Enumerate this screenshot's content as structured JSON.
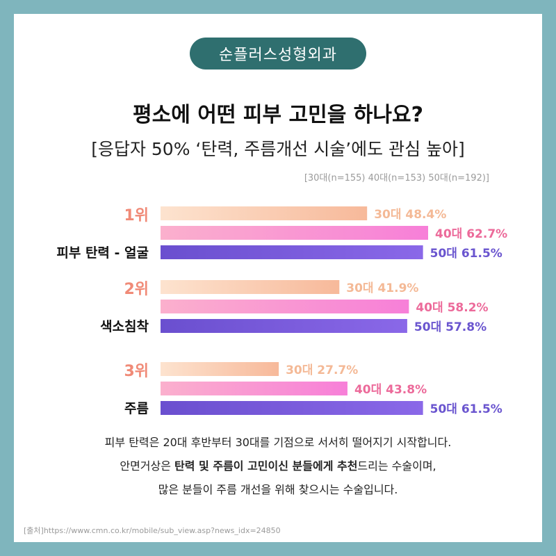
{
  "brand": "순플러스성형외과",
  "title": "평소에 어떤 피부 고민을 하나요?",
  "subtitle": "[응답자 50% ‘탄력, 주름개선 시술’에도 관심 높아]",
  "sample_note": "[30대(n=155)  40대(n=153)  50대(n=192)]",
  "chart_data": {
    "type": "bar",
    "orientation": "horizontal",
    "unit": "%",
    "xlim": [
      0,
      100
    ],
    "grid": false,
    "categories": [
      {
        "rank": "1위",
        "label": "피부 탄력 - 얼굴"
      },
      {
        "rank": "2위",
        "label": "색소침착"
      },
      {
        "rank": "3위",
        "label": "주름"
      }
    ],
    "series": [
      {
        "name": "30대",
        "values": [
          48.4,
          41.9,
          27.7
        ],
        "labels": [
          "30대 48.4%",
          "30대 41.9%",
          "30대 27.7%"
        ],
        "color_start": "#fde3cf",
        "color_end": "#f7b99a",
        "label_color": "#f4b996"
      },
      {
        "name": "40대",
        "values": [
          62.7,
          58.2,
          43.8
        ],
        "labels": [
          "40대 62.7%",
          "40대 58.2%",
          "40대 43.8%"
        ],
        "color_start": "#fbb0cd",
        "color_end": "#f77fd8",
        "label_color": "#ec6a9a"
      },
      {
        "name": "50대",
        "values": [
          61.5,
          57.8,
          61.5
        ],
        "labels": [
          "50대 61.5%",
          "50대 57.8%",
          "50대 61.5%"
        ],
        "color_start": "#6a4fcf",
        "color_end": "#8a68e8",
        "label_color": "#6a55cf"
      }
    ],
    "rank_color": "#f08a77"
  },
  "footer": {
    "line1": "피부 탄력은 20대 후반부터 30대를 기점으로 서서히 떨어지기 시작합니다.",
    "line2_pre": "안면거상은 ",
    "line2_bold": "탄력 및 주름이 고민이신 분들에게 추천",
    "line2_post": "드리는 수술이며,",
    "line3": "많은 분들이 주름 개선을 위해 찾으시는 수술입니다."
  },
  "source": "[출처]https://www.cmn.co.kr/mobile/sub_view.asp?news_idx=24850"
}
